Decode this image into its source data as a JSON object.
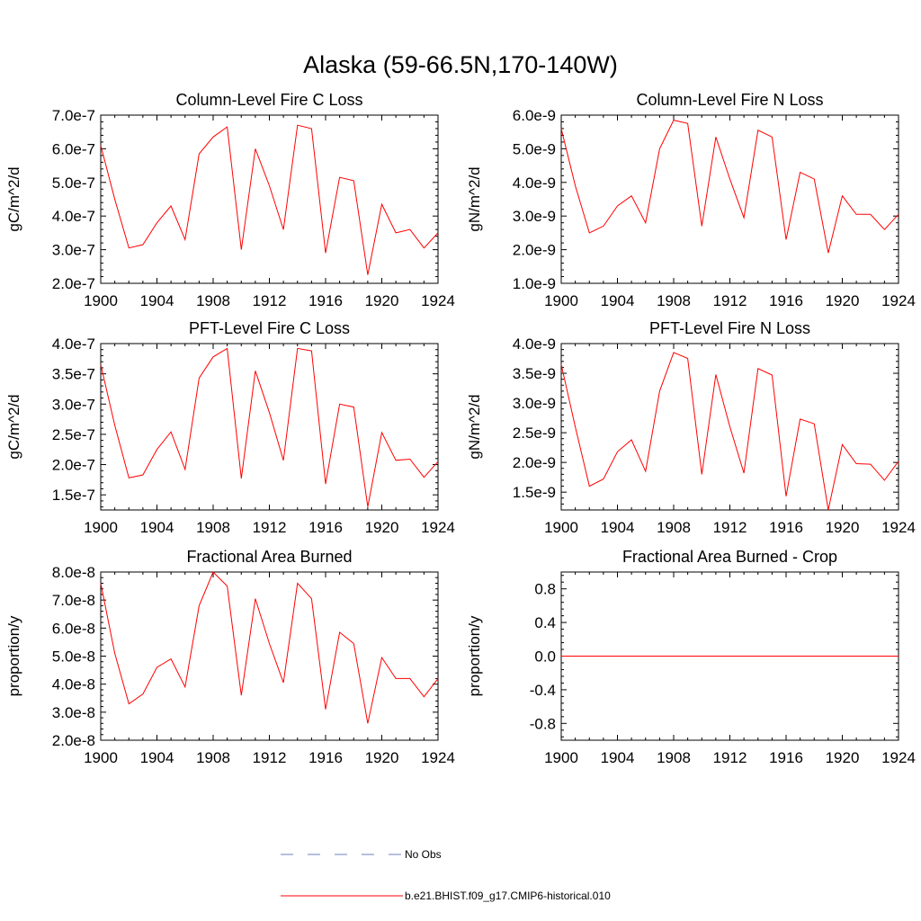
{
  "title": "Alaska (59-66.5N,170-140W)",
  "colors": {
    "model_line": "#ff0000",
    "obs_line": "#6f7fbf",
    "axis": "#000000"
  },
  "legend": [
    {
      "label": "No Obs",
      "style": "dashed",
      "color": "#6f7fbf"
    },
    {
      "label": "b.e21.BHIST.f09_g17.CMIP6-historical.010",
      "style": "solid",
      "color": "#ff0000"
    }
  ],
  "chart_data": [
    {
      "type": "line",
      "title": "Column-Level Fire C Loss",
      "ylabel": "gC/m^2/d",
      "x": [
        1900,
        1901,
        1902,
        1903,
        1904,
        1905,
        1906,
        1907,
        1908,
        1909,
        1910,
        1911,
        1912,
        1913,
        1914,
        1915,
        1916,
        1917,
        1918,
        1919,
        1920,
        1921,
        1922,
        1923,
        1924
      ],
      "xlim": [
        1900,
        1924
      ],
      "xticks": [
        "1900",
        "1904",
        "1908",
        "1912",
        "1916",
        "1920",
        "1924"
      ],
      "ylim": [
        2e-07,
        7e-07
      ],
      "yticks": [
        "2.0e-7",
        "3.0e-7",
        "4.0e-7",
        "5.0e-7",
        "6.0e-7",
        "7.0e-7"
      ],
      "series": [
        {
          "name": "b.e21.BHIST.f09_g17.CMIP6-historical.010",
          "values": [
            6.1e-07,
            4.5e-07,
            3.05e-07,
            3.15e-07,
            3.8e-07,
            4.3e-07,
            3.3e-07,
            5.85e-07,
            6.35e-07,
            6.65e-07,
            3e-07,
            6e-07,
            4.9e-07,
            3.6e-07,
            6.7e-07,
            6.6e-07,
            2.9e-07,
            5.15e-07,
            5.05e-07,
            2.25e-07,
            4.35e-07,
            3.5e-07,
            3.6e-07,
            3.05e-07,
            3.5e-07
          ]
        }
      ]
    },
    {
      "type": "line",
      "title": "Column-Level Fire N Loss",
      "ylabel": "gN/m^2/d",
      "x": [
        1900,
        1901,
        1902,
        1903,
        1904,
        1905,
        1906,
        1907,
        1908,
        1909,
        1910,
        1911,
        1912,
        1913,
        1914,
        1915,
        1916,
        1917,
        1918,
        1919,
        1920,
        1921,
        1922,
        1923,
        1924
      ],
      "xlim": [
        1900,
        1924
      ],
      "xticks": [
        "1900",
        "1904",
        "1908",
        "1912",
        "1916",
        "1920",
        "1924"
      ],
      "ylim": [
        1e-09,
        6e-09
      ],
      "yticks": [
        "1.0e-9",
        "2.0e-9",
        "3.0e-9",
        "4.0e-9",
        "5.0e-9",
        "6.0e-9"
      ],
      "series": [
        {
          "name": "b.e21.BHIST.f09_g17.CMIP6-historical.010",
          "values": [
            5.6e-09,
            3.9e-09,
            2.5e-09,
            2.7e-09,
            3.3e-09,
            3.6e-09,
            2.8e-09,
            5e-09,
            5.85e-09,
            5.75e-09,
            2.7e-09,
            5.35e-09,
            4.1e-09,
            2.95e-09,
            5.55e-09,
            5.35e-09,
            2.3e-09,
            4.3e-09,
            4.1e-09,
            1.9e-09,
            3.6e-09,
            3.05e-09,
            3.05e-09,
            2.6e-09,
            3.05e-09
          ]
        }
      ]
    },
    {
      "type": "line",
      "title": "PFT-Level Fire C Loss",
      "ylabel": "gC/m^2/d",
      "x": [
        1900,
        1901,
        1902,
        1903,
        1904,
        1905,
        1906,
        1907,
        1908,
        1909,
        1910,
        1911,
        1912,
        1913,
        1914,
        1915,
        1916,
        1917,
        1918,
        1919,
        1920,
        1921,
        1922,
        1923,
        1924
      ],
      "xlim": [
        1900,
        1924
      ],
      "xticks": [
        "1900",
        "1904",
        "1908",
        "1912",
        "1916",
        "1920",
        "1924"
      ],
      "ylim": [
        1.25e-07,
        4e-07
      ],
      "yticks": [
        "1.5e-7",
        "2.0e-7",
        "2.5e-7",
        "3.0e-7",
        "3.5e-7",
        "4.0e-7"
      ],
      "series": [
        {
          "name": "b.e21.BHIST.f09_g17.CMIP6-historical.010",
          "values": [
            3.65e-07,
            2.65e-07,
            1.78e-07,
            1.83e-07,
            2.25e-07,
            2.54e-07,
            1.92e-07,
            3.43e-07,
            3.78e-07,
            3.92e-07,
            1.77e-07,
            3.55e-07,
            2.86e-07,
            2.07e-07,
            3.92e-07,
            3.88e-07,
            1.68e-07,
            3e-07,
            2.95e-07,
            1.3e-07,
            2.53e-07,
            2.07e-07,
            2.09e-07,
            1.79e-07,
            2.05e-07
          ]
        }
      ]
    },
    {
      "type": "line",
      "title": "PFT-Level Fire N Loss",
      "ylabel": "gN/m^2/d",
      "x": [
        1900,
        1901,
        1902,
        1903,
        1904,
        1905,
        1906,
        1907,
        1908,
        1909,
        1910,
        1911,
        1912,
        1913,
        1914,
        1915,
        1916,
        1917,
        1918,
        1919,
        1920,
        1921,
        1922,
        1923,
        1924
      ],
      "xlim": [
        1900,
        1924
      ],
      "xticks": [
        "1900",
        "1904",
        "1908",
        "1912",
        "1916",
        "1920",
        "1924"
      ],
      "ylim": [
        1.2e-09,
        4e-09
      ],
      "yticks": [
        "1.5e-9",
        "2.0e-9",
        "2.5e-9",
        "3.0e-9",
        "3.5e-9",
        "4.0e-9"
      ],
      "series": [
        {
          "name": "b.e21.BHIST.f09_g17.CMIP6-historical.010",
          "values": [
            3.65e-09,
            2.6e-09,
            1.6e-09,
            1.72e-09,
            2.18e-09,
            2.38e-09,
            1.85e-09,
            3.2e-09,
            3.85e-09,
            3.75e-09,
            1.8e-09,
            3.48e-09,
            2.6e-09,
            1.82e-09,
            3.58e-09,
            3.47e-09,
            1.43e-09,
            2.73e-09,
            2.65e-09,
            1.2e-09,
            2.3e-09,
            1.98e-09,
            1.97e-09,
            1.7e-09,
            2.02e-09
          ]
        }
      ]
    },
    {
      "type": "line",
      "title": "Fractional Area Burned",
      "ylabel": "proportion/y",
      "x": [
        1900,
        1901,
        1902,
        1903,
        1904,
        1905,
        1906,
        1907,
        1908,
        1909,
        1910,
        1911,
        1912,
        1913,
        1914,
        1915,
        1916,
        1917,
        1918,
        1919,
        1920,
        1921,
        1922,
        1923,
        1924
      ],
      "xlim": [
        1900,
        1924
      ],
      "xticks": [
        "1900",
        "1904",
        "1908",
        "1912",
        "1916",
        "1920",
        "1924"
      ],
      "ylim": [
        2e-08,
        8e-08
      ],
      "yticks": [
        "2.0e-8",
        "3.0e-8",
        "4.0e-8",
        "5.0e-8",
        "6.0e-8",
        "7.0e-8",
        "8.0e-8"
      ],
      "series": [
        {
          "name": "b.e21.BHIST.f09_g17.CMIP6-historical.010",
          "values": [
            7.6e-08,
            5.1e-08,
            3.3e-08,
            3.65e-08,
            4.6e-08,
            4.9e-08,
            3.9e-08,
            6.8e-08,
            8e-08,
            7.5e-08,
            3.6e-08,
            7.05e-08,
            5.45e-08,
            4.05e-08,
            7.6e-08,
            7.05e-08,
            3.1e-08,
            5.85e-08,
            5.45e-08,
            2.6e-08,
            4.95e-08,
            4.2e-08,
            4.2e-08,
            3.55e-08,
            4.2e-08
          ]
        }
      ]
    },
    {
      "type": "line",
      "title": "Fractional Area Burned - Crop",
      "ylabel": "proportion/y",
      "x": [
        1900,
        1901,
        1902,
        1903,
        1904,
        1905,
        1906,
        1907,
        1908,
        1909,
        1910,
        1911,
        1912,
        1913,
        1914,
        1915,
        1916,
        1917,
        1918,
        1919,
        1920,
        1921,
        1922,
        1923,
        1924
      ],
      "xlim": [
        1900,
        1924
      ],
      "xticks": [
        "1900",
        "1904",
        "1908",
        "1912",
        "1916",
        "1920",
        "1924"
      ],
      "ylim": [
        -1.0,
        1.0
      ],
      "yticks": [
        "-0.8",
        "-0.4",
        "0.0",
        "0.4",
        "0.8"
      ],
      "series": [
        {
          "name": "b.e21.BHIST.f09_g17.CMIP6-historical.010",
          "values": [
            0,
            0,
            0,
            0,
            0,
            0,
            0,
            0,
            0,
            0,
            0,
            0,
            0,
            0,
            0,
            0,
            0,
            0,
            0,
            0,
            0,
            0,
            0,
            0,
            0
          ]
        }
      ]
    }
  ]
}
